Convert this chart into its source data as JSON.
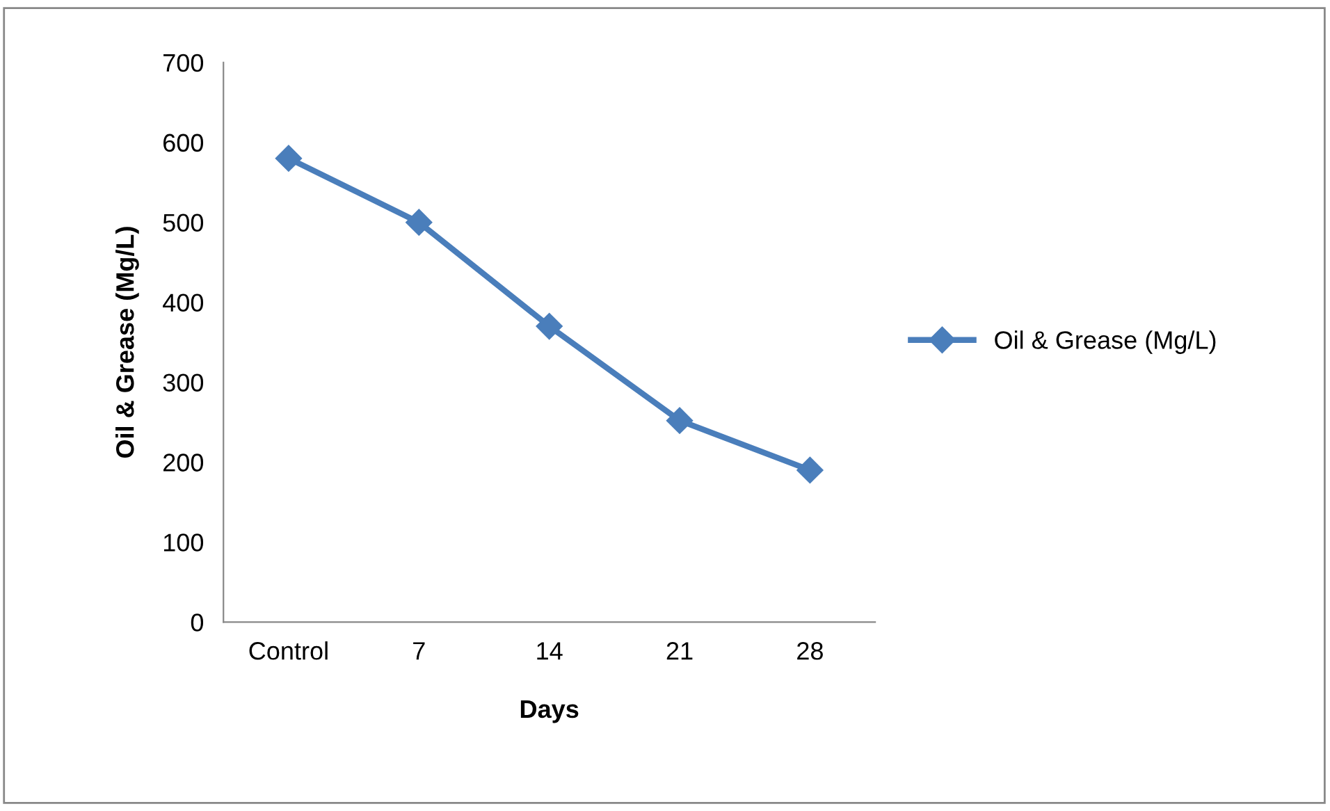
{
  "chart_data": {
    "type": "line",
    "xlabel": "Days",
    "ylabel": "Oil & Grease (Mg/L)",
    "categories": [
      "Control",
      "7",
      "14",
      "21",
      "28"
    ],
    "series": [
      {
        "name": "Oil & Grease (Mg/L)",
        "color": "#4a7ebb",
        "values": [
          580,
          500,
          370,
          252,
          190
        ]
      }
    ],
    "ylim": [
      0,
      700
    ],
    "yticks": [
      0,
      100,
      200,
      300,
      400,
      500,
      600,
      700
    ],
    "grid": false,
    "legend": "right",
    "marker": "diamond",
    "line_style": "solid"
  }
}
